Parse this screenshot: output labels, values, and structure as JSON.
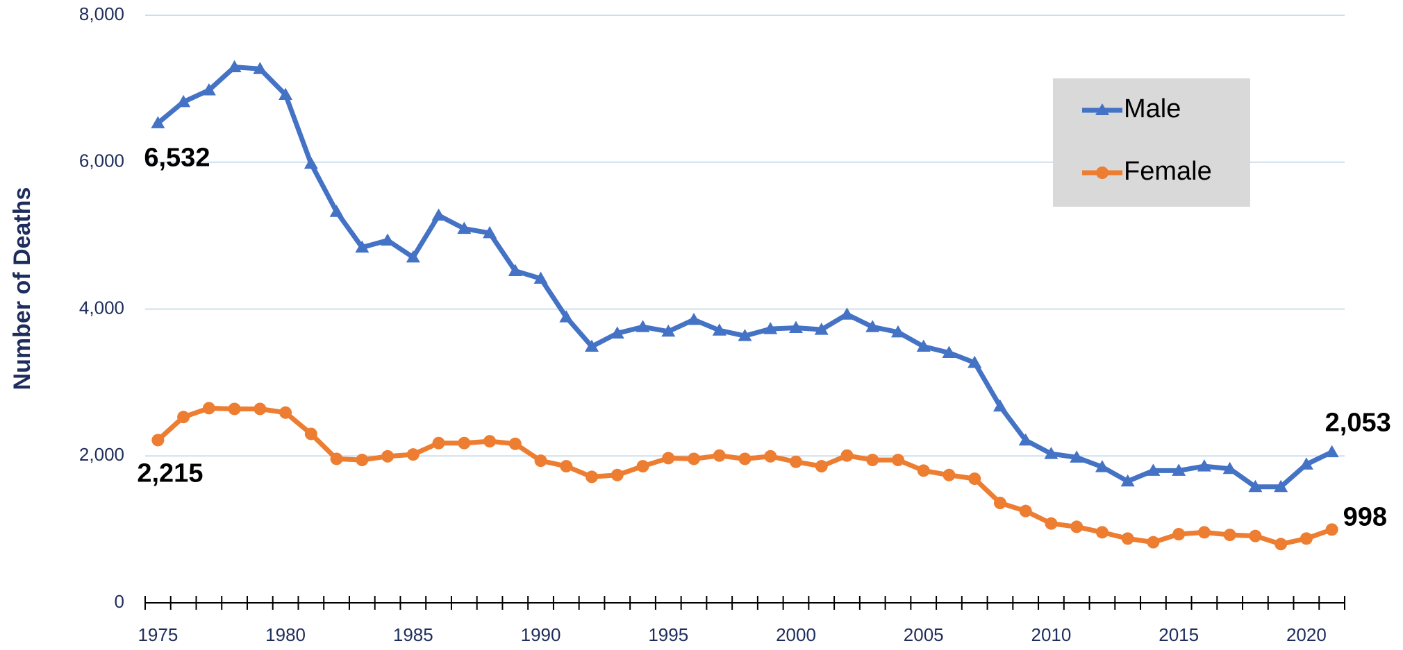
{
  "chart_data": {
    "type": "line",
    "y_label": "Number of Deaths",
    "x": [
      1975,
      1976,
      1977,
      1978,
      1979,
      1980,
      1981,
      1982,
      1983,
      1984,
      1985,
      1986,
      1987,
      1988,
      1989,
      1990,
      1991,
      1992,
      1993,
      1994,
      1995,
      1996,
      1997,
      1998,
      1999,
      2000,
      2001,
      2002,
      2003,
      2004,
      2005,
      2006,
      2007,
      2008,
      2009,
      2010,
      2011,
      2012,
      2013,
      2014,
      2015,
      2016,
      2017,
      2018,
      2019,
      2020,
      2021
    ],
    "xlim": [
      1974.5,
      2021.5
    ],
    "xticks": [
      1975,
      1980,
      1985,
      1990,
      1995,
      2000,
      2005,
      2010,
      2015,
      2020
    ],
    "ylim": [
      0,
      8000
    ],
    "yticks": [
      0,
      {
        "value": 2000,
        "label": "2,000"
      },
      {
        "value": 4000,
        "label": "4,000"
      },
      {
        "value": 6000,
        "label": "6,000"
      },
      {
        "value": 8000,
        "label": "8,000"
      }
    ],
    "grid": true,
    "legend": "upper right",
    "series": [
      {
        "name": "Male",
        "color": "#4472c4",
        "marker": "triangle",
        "values": [
          6532,
          6820,
          6980,
          7295,
          7270,
          6918,
          5980,
          5325,
          4840,
          4935,
          4705,
          5275,
          5095,
          5035,
          4520,
          4415,
          3890,
          3490,
          3670,
          3757,
          3695,
          3855,
          3710,
          3635,
          3730,
          3745,
          3720,
          3927,
          3757,
          3685,
          3490,
          3405,
          3270,
          2675,
          2213,
          2030,
          1980,
          1850,
          1655,
          1800,
          1800,
          1860,
          1825,
          1580,
          1580,
          1885,
          2053
        ],
        "value_labels": [
          "6,532",
          null,
          null,
          null,
          null,
          null,
          null,
          null,
          null,
          null,
          null,
          null,
          null,
          null,
          null,
          null,
          null,
          null,
          null,
          null,
          null,
          null,
          null,
          null,
          null,
          null,
          null,
          null,
          null,
          null,
          null,
          null,
          null,
          null,
          null,
          null,
          null,
          null,
          null,
          null,
          null,
          null,
          null,
          null,
          null,
          null,
          "2,053"
        ]
      },
      {
        "name": "Female",
        "color": "#ed7d31",
        "marker": "circle",
        "values": [
          2215,
          2530,
          2650,
          2640,
          2640,
          2590,
          2300,
          1960,
          1945,
          1995,
          2020,
          2175,
          2175,
          2200,
          2165,
          1935,
          1860,
          1715,
          1740,
          1860,
          1970,
          1960,
          2005,
          1960,
          1995,
          1920,
          1860,
          2005,
          1945,
          1945,
          1800,
          1740,
          1690,
          1360,
          1250,
          1080,
          1035,
          960,
          875,
          825,
          935,
          960,
          925,
          910,
          800,
          875,
          998
        ],
        "value_labels": [
          "2,215",
          null,
          null,
          null,
          null,
          null,
          null,
          null,
          null,
          null,
          null,
          null,
          null,
          null,
          null,
          null,
          null,
          null,
          null,
          null,
          null,
          null,
          null,
          null,
          null,
          null,
          null,
          null,
          null,
          null,
          null,
          null,
          null,
          null,
          null,
          null,
          null,
          null,
          null,
          null,
          null,
          null,
          null,
          null,
          null,
          null,
          "998"
        ]
      }
    ]
  }
}
